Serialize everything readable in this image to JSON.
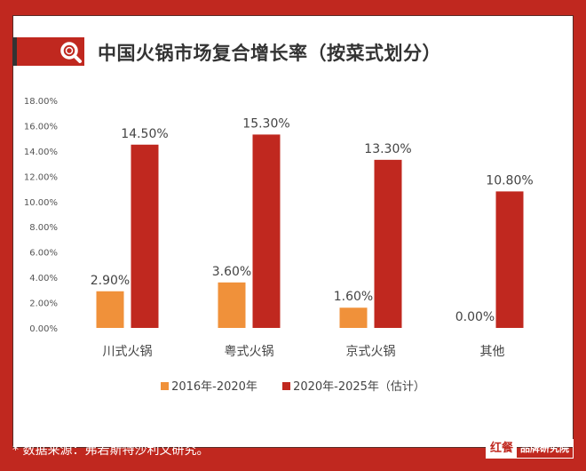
{
  "title": "中国火锅市场复合增长率（按菜式划分）",
  "source": "* 数据来源：弗若斯特沙利文研究。",
  "brand": {
    "logo": "红餐",
    "name": "品牌研究院"
  },
  "colors": {
    "series1": "#f0913a",
    "series2": "#c0281f",
    "frame": "#c0281f"
  },
  "chart_data": {
    "type": "bar",
    "title": "中国火锅市场复合增长率（按菜式划分）",
    "categories": [
      "川式火锅",
      "粤式火锅",
      "京式火锅",
      "其他"
    ],
    "series": [
      {
        "name": "2016年-2020年",
        "values": [
          2.9,
          3.6,
          1.6,
          0.0
        ],
        "labels": [
          "2.90%",
          "3.60%",
          "1.60%",
          "0.00%"
        ]
      },
      {
        "name": "2020年-2025年（估计）",
        "values": [
          14.5,
          15.3,
          13.3,
          10.8
        ],
        "labels": [
          "14.50%",
          "15.30%",
          "13.30%",
          "10.80%"
        ]
      }
    ],
    "yticks": [
      "0.00%",
      "2.00%",
      "4.00%",
      "6.00%",
      "8.00%",
      "10.00%",
      "12.00%",
      "14.00%",
      "16.00%",
      "18.00%"
    ],
    "ylim": [
      0,
      18
    ],
    "grid": false,
    "legend": "bottom"
  }
}
